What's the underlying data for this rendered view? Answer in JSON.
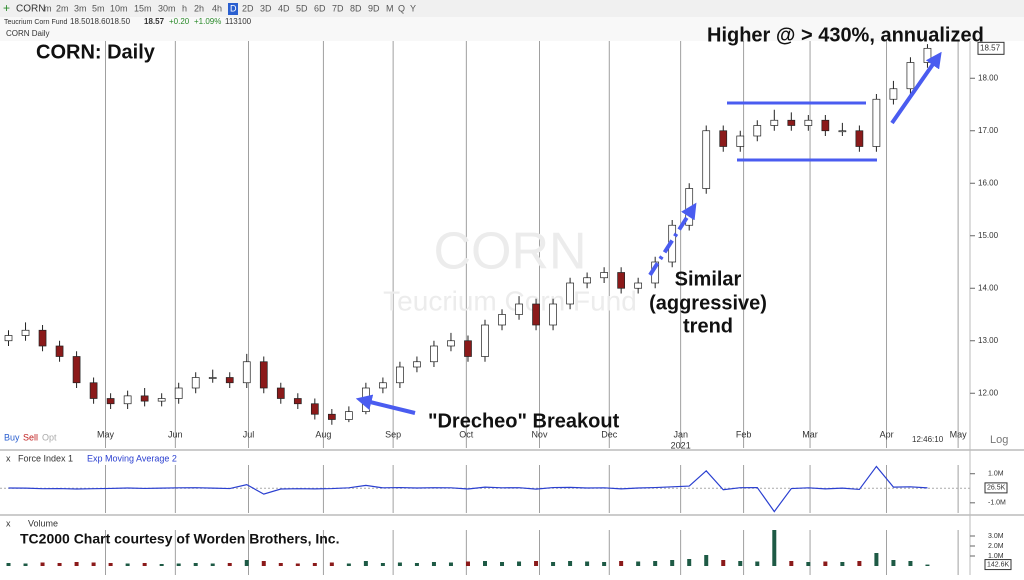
{
  "toolbar": {
    "symbol": "CORN",
    "timeframes": [
      "m",
      "2m",
      "3m",
      "5m",
      "10m",
      "15m",
      "30m",
      "h",
      "2h",
      "4h",
      "D",
      "2D",
      "3D",
      "4D",
      "5D",
      "6D",
      "7D",
      "8D",
      "9D",
      "M",
      "Q",
      "Y"
    ],
    "active": 10
  },
  "quote": [
    "Teucrium Corn Fund",
    "18.50",
    "18.60",
    "18.50",
    "18.57",
    "+0.20",
    "+1.09%",
    "113100"
  ],
  "chart_header": "CORN Daily",
  "trade_buttons": [
    "Buy",
    "Sell",
    "Opt"
  ],
  "scale_mode": "Log",
  "clock": "12:46:10",
  "chart_data": [
    {
      "type": "candlestick",
      "title": "CORN:  Daily",
      "watermark": [
        "CORN",
        "Teucrium Corn Fund"
      ],
      "annotations": [
        "Higher @ > 430%, annualized",
        "Similar",
        "(aggressive)",
        "trend",
        "\"Drecheo\" Breakout"
      ],
      "categories": [
        null,
        null,
        null,
        null,
        null,
        null,
        null,
        null,
        null,
        null,
        null,
        null,
        null,
        null,
        null,
        null,
        null,
        null,
        null,
        null,
        null,
        null,
        null,
        null,
        null,
        null,
        null,
        null,
        null,
        null,
        null,
        null,
        null,
        null,
        null,
        null,
        null,
        null,
        null,
        null,
        null,
        null,
        null,
        null,
        null,
        null,
        null,
        null,
        null,
        null,
        null,
        null,
        null,
        null,
        null
      ],
      "open": [
        13.0,
        13.1,
        13.2,
        12.9,
        12.7,
        12.2,
        11.9,
        11.8,
        11.95,
        11.85,
        11.9,
        12.1,
        12.3,
        12.3,
        12.2,
        12.6,
        12.1,
        11.9,
        11.8,
        11.6,
        11.5,
        11.65,
        12.1,
        12.2,
        12.5,
        12.6,
        12.9,
        13.0,
        12.7,
        13.3,
        13.5,
        13.7,
        13.3,
        13.7,
        14.1,
        14.2,
        14.3,
        14.0,
        14.1,
        14.5,
        15.2,
        15.9,
        17.0,
        16.7,
        16.9,
        17.1,
        17.2,
        17.1,
        17.2,
        17.0,
        17.0,
        16.7,
        17.6,
        17.8,
        18.3
      ],
      "high": [
        13.2,
        13.35,
        13.3,
        13.0,
        12.8,
        12.3,
        12.0,
        12.05,
        12.1,
        12.0,
        12.2,
        12.4,
        12.45,
        12.4,
        12.75,
        12.7,
        12.2,
        12.0,
        11.9,
        11.7,
        11.75,
        12.2,
        12.3,
        12.6,
        12.7,
        13.0,
        13.15,
        13.1,
        13.4,
        13.6,
        13.85,
        13.8,
        13.8,
        14.2,
        14.3,
        14.4,
        14.4,
        14.2,
        14.6,
        15.3,
        16.0,
        17.1,
        17.1,
        17.0,
        17.2,
        17.4,
        17.35,
        17.3,
        17.3,
        17.15,
        17.1,
        17.7,
        17.95,
        18.4,
        18.65
      ],
      "low": [
        12.9,
        13.0,
        12.8,
        12.6,
        12.1,
        11.8,
        11.7,
        11.7,
        11.75,
        11.75,
        11.8,
        12.0,
        12.2,
        12.1,
        12.1,
        12.0,
        11.8,
        11.7,
        11.5,
        11.4,
        11.45,
        11.6,
        12.0,
        12.1,
        12.4,
        12.5,
        12.8,
        12.6,
        12.6,
        13.2,
        13.4,
        13.2,
        13.2,
        13.6,
        14.0,
        14.1,
        13.9,
        13.9,
        14.0,
        14.4,
        15.1,
        15.8,
        16.6,
        16.6,
        16.8,
        17.0,
        17.0,
        17.0,
        16.9,
        16.9,
        16.6,
        16.6,
        17.5,
        17.7,
        18.2
      ],
      "close": [
        13.1,
        13.2,
        12.9,
        12.7,
        12.2,
        11.9,
        11.8,
        11.95,
        11.85,
        11.9,
        12.1,
        12.3,
        12.3,
        12.2,
        12.6,
        12.1,
        11.9,
        11.8,
        11.6,
        11.5,
        11.65,
        12.1,
        12.2,
        12.5,
        12.6,
        12.9,
        13.0,
        12.7,
        13.3,
        13.5,
        13.7,
        13.3,
        13.7,
        14.1,
        14.2,
        14.3,
        14.0,
        14.1,
        14.5,
        15.2,
        15.9,
        17.0,
        16.7,
        16.9,
        17.1,
        17.2,
        17.1,
        17.2,
        17.0,
        17.0,
        16.7,
        17.6,
        17.8,
        18.3,
        18.57
      ],
      "up_color": "#ffffff",
      "down_color": "#8b1a1a",
      "xlim": [
        -0.5,
        56.5
      ],
      "xticks": [
        {
          "value": 5.7,
          "label": "May"
        },
        {
          "value": 9.8,
          "label": "Jun"
        },
        {
          "value": 14.1,
          "label": "Jul"
        },
        {
          "value": 18.5,
          "label": "Aug"
        },
        {
          "value": 22.6,
          "label": "Sep"
        },
        {
          "value": 26.9,
          "label": "Oct"
        },
        {
          "value": 31.2,
          "label": "Nov"
        },
        {
          "value": 35.3,
          "label": "Dec"
        },
        {
          "value": 39.5,
          "label": "Jan"
        },
        {
          "value": 43.2,
          "label": "Feb"
        },
        {
          "value": 47.1,
          "label": "Mar"
        },
        {
          "value": 51.6,
          "label": "Apr"
        },
        {
          "value": 55.8,
          "label": "May"
        }
      ],
      "year_label": {
        "value": 39.5,
        "label": "2021"
      },
      "ylim": [
        11.3,
        18.9
      ],
      "yticks": [
        {
          "value": 12,
          "label": "12.00"
        },
        {
          "value": 13,
          "label": "13.00"
        },
        {
          "value": 14,
          "label": "14.00"
        },
        {
          "value": 15,
          "label": "15.00"
        },
        {
          "value": 16,
          "label": "16.00"
        },
        {
          "value": 17,
          "label": "17.00"
        },
        {
          "value": 18,
          "label": "18.00"
        }
      ],
      "last": {
        "value": 18.57,
        "label": "18.57"
      },
      "log_scale": true,
      "grid": true
    },
    {
      "type": "line",
      "title": [
        "Force Index 1",
        "Exp Moving Average 2"
      ],
      "series": [
        {
          "name": "Force Index 1",
          "color": "#2a3fd0",
          "values": [
            0.02,
            0.01,
            -0.03,
            -0.02,
            -0.05,
            -0.03,
            -0.01,
            0.02,
            -0.01,
            0.01,
            0.03,
            0.04,
            0.01,
            -0.02,
            0.25,
            -0.4,
            -0.05,
            -0.03,
            -0.04,
            -0.02,
            0.03,
            0.2,
            0.03,
            0.05,
            0.02,
            0.04,
            0.03,
            -0.05,
            0.08,
            0.03,
            0.04,
            -0.06,
            0.05,
            0.06,
            0.02,
            0.03,
            -0.04,
            0.02,
            0.05,
            0.1,
            0.15,
            1.2,
            -0.1,
            0.04,
            0.05,
            -1.6,
            -0.02,
            0.03,
            -0.04,
            0.01,
            -0.08,
            1.5,
            0.08,
            0.1,
            0.0265
          ]
        }
      ],
      "ylim": [
        -1.7,
        1.6
      ],
      "yticks": [
        {
          "value": 1,
          "label": "1.0M"
        },
        {
          "value": -1,
          "label": "-1.0M"
        }
      ],
      "last": {
        "value": 0.0265,
        "label": "26.5K"
      }
    },
    {
      "type": "bar",
      "title": "Volume",
      "note": "TC2000 Chart courtesy of Worden Brothers, Inc.",
      "values": [
        0.3,
        0.25,
        0.35,
        0.3,
        0.4,
        0.35,
        0.3,
        0.25,
        0.3,
        0.2,
        0.25,
        0.3,
        0.25,
        0.3,
        0.6,
        0.5,
        0.3,
        0.25,
        0.3,
        0.35,
        0.25,
        0.5,
        0.3,
        0.35,
        0.3,
        0.4,
        0.35,
        0.45,
        0.5,
        0.4,
        0.45,
        0.5,
        0.4,
        0.5,
        0.45,
        0.4,
        0.5,
        0.45,
        0.5,
        0.6,
        0.7,
        1.1,
        0.6,
        0.5,
        0.45,
        3.6,
        0.5,
        0.4,
        0.45,
        0.4,
        0.5,
        1.3,
        0.6,
        0.5,
        0.1426
      ],
      "up_color": "#1e5a45",
      "down_color": "#8b1a1a",
      "ylim": [
        0,
        3.6
      ],
      "yticks": [
        {
          "value": 3,
          "label": "3.0M"
        },
        {
          "value": 2,
          "label": "2.0M"
        },
        {
          "value": 1,
          "label": "1.0M"
        }
      ],
      "last": {
        "value": 0.1426,
        "label": "142.6K"
      }
    }
  ]
}
